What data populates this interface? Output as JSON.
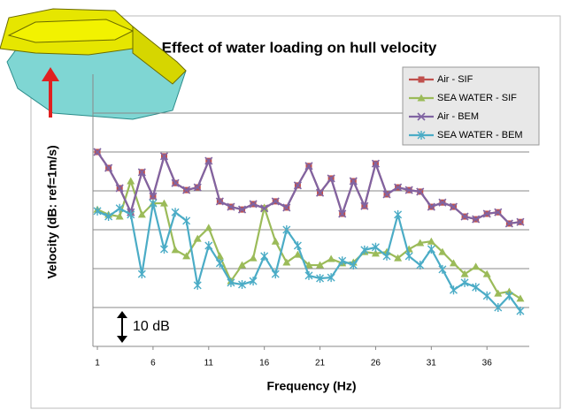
{
  "chart_data": {
    "type": "line",
    "title": "Effect of water loading on hull velocity",
    "x_label": "Frequency (Hz)",
    "y_label": "Velocity (dB: ref=1m/s)",
    "scale_bar": {
      "label": "10 dB",
      "value": 10
    },
    "x": [
      1,
      2,
      3,
      4,
      5,
      6,
      7,
      8,
      9,
      10,
      11,
      12,
      13,
      14,
      15,
      16,
      17,
      18,
      19,
      20,
      21,
      22,
      23,
      24,
      25,
      26,
      27,
      28,
      29,
      30,
      31,
      32,
      33,
      34,
      35,
      36,
      37,
      38,
      39
    ],
    "xlim": [
      0.6,
      39.8
    ],
    "xticks": [
      1,
      6,
      11,
      16,
      21,
      26,
      31,
      36
    ],
    "ylim": [
      0,
      70
    ],
    "y_gridlines": [
      10,
      20,
      30,
      40,
      50,
      60
    ],
    "grid": true,
    "legend": "top-right",
    "series": [
      {
        "name": "Air - SIF",
        "color": "#c0504d",
        "marker": "square",
        "values": [
          50,
          45.9,
          40.7,
          34.5,
          44.8,
          38.6,
          48.9,
          42,
          40.2,
          40.9,
          47.7,
          37.3,
          35.9,
          35.2,
          36.6,
          35.5,
          37.3,
          35.7,
          41.4,
          46.4,
          39.5,
          43.2,
          34.1,
          42.5,
          36.1,
          47,
          39.1,
          40.9,
          40.2,
          39.8,
          35.9,
          37,
          35.9,
          33.4,
          32.7,
          34.1,
          34.5,
          31.6,
          32
        ]
      },
      {
        "name": "SEA WATER - SIF",
        "color": "#9bbb59",
        "marker": "triangle",
        "values": [
          35.2,
          33.9,
          33.4,
          42.5,
          33.9,
          36.8,
          36.8,
          24.8,
          23.2,
          27.7,
          30.5,
          23.2,
          16.8,
          20.9,
          22.7,
          35.7,
          27,
          21.6,
          23.6,
          20.9,
          20.9,
          22.5,
          21.4,
          21.6,
          24.3,
          23.9,
          24.3,
          22.7,
          25,
          26.6,
          27,
          24.3,
          21.4,
          18.6,
          20.5,
          18.6,
          13.6,
          14.1,
          12.3
        ]
      },
      {
        "name": "Air - BEM",
        "color": "#8064a2",
        "marker": "x",
        "values": [
          50,
          45.9,
          40.7,
          34.5,
          44.8,
          38.6,
          48.9,
          42,
          40.2,
          40.9,
          47.7,
          37.3,
          35.9,
          35.2,
          36.6,
          35.5,
          37.3,
          35.7,
          41.4,
          46.4,
          39.5,
          43.2,
          34.1,
          42.5,
          36.1,
          47,
          39.1,
          40.9,
          40.2,
          39.8,
          35.9,
          37,
          35.9,
          33.4,
          32.7,
          34.1,
          34.5,
          31.6,
          32
        ]
      },
      {
        "name": "SEA WATER - BEM",
        "color": "#4bacc6",
        "marker": "star",
        "values": [
          34.8,
          33.4,
          35.5,
          33.9,
          18.6,
          36.8,
          25,
          34.5,
          32.3,
          15.7,
          25.9,
          21.4,
          16.4,
          15.9,
          16.8,
          23.2,
          18.6,
          30,
          25.9,
          18.2,
          17.5,
          17.7,
          22,
          20.9,
          24.8,
          25.5,
          23.2,
          33.9,
          23.2,
          20.9,
          25,
          19.8,
          14.5,
          16.4,
          15.2,
          13,
          10,
          13,
          9.1
        ]
      }
    ]
  }
}
